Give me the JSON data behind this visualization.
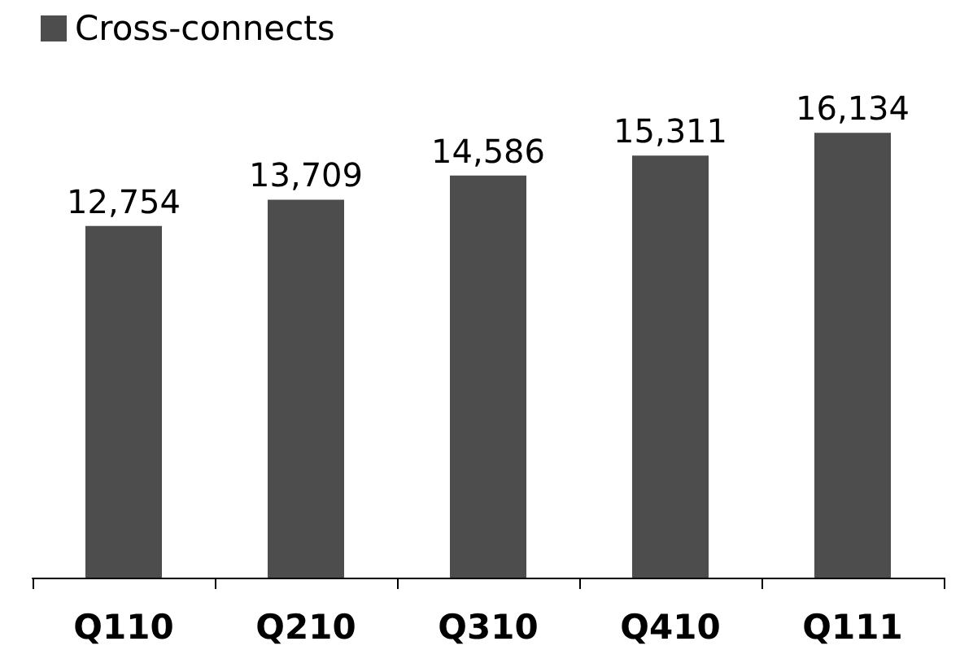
{
  "chart_data": {
    "type": "bar",
    "categories": [
      "Q110",
      "Q210",
      "Q310",
      "Q410",
      "Q111"
    ],
    "series": [
      {
        "name": "Cross-connects",
        "color": "#4d4d4d",
        "values": [
          12754,
          13709,
          14586,
          15311,
          16134
        ],
        "value_labels": [
          "12,754",
          "13,709",
          "14,586",
          "15,311",
          "16,134"
        ]
      }
    ],
    "legend": "top left",
    "grid": false
  }
}
